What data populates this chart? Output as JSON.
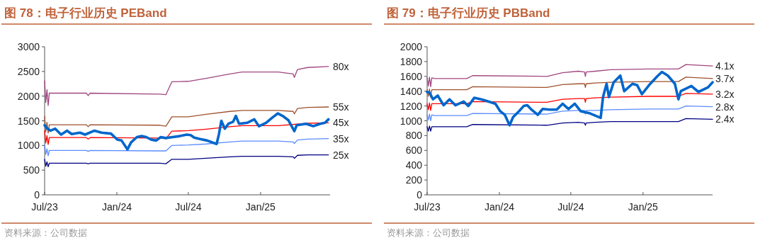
{
  "chart_data": [
    {
      "type": "line",
      "title": "图 78：电子行业历史 PEBand",
      "annotations": [
        "资料来源：公司数据"
      ],
      "xlim": [
        "2023-07-01",
        "2025-06-27"
      ],
      "xticks": [
        {
          "value": "2023-07-01",
          "label": "Jul/23"
        },
        {
          "value": "2024-01-01",
          "label": "Jan/24"
        },
        {
          "value": "2024-07-01",
          "label": "Jul/24"
        },
        {
          "value": "2025-01-01",
          "label": "Jan/25"
        }
      ],
      "ylim": [
        0,
        3000
      ],
      "yticks": [
        0,
        500,
        1000,
        1500,
        2000,
        2500,
        3000
      ],
      "series": [
        {
          "name": "80x",
          "color": "#a0467f",
          "x": [
            "2023-07-01",
            "2023-07-04",
            "2023-07-07",
            "2023-07-10",
            "2023-07-13",
            "2023-08-01",
            "2023-10-15",
            "2023-10-20",
            "2023-10-25",
            "2024-04-20",
            "2024-05-05",
            "2024-05-20",
            "2024-07-01",
            "2024-08-15",
            "2024-10-15",
            "2024-11-15",
            "2025-02-15",
            "2025-03-25",
            "2025-03-28",
            "2025-04-05",
            "2025-05-01",
            "2025-06-23"
          ],
          "values": [
            2310,
            1870,
            2130,
            1810,
            2060,
            2060,
            2060,
            2010,
            2060,
            2040,
            2030,
            2290,
            2300,
            2360,
            2450,
            2490,
            2490,
            2450,
            2380,
            2540,
            2580,
            2600
          ]
        },
        {
          "name": "55x",
          "color": "#a0522d",
          "x": [
            "2023-07-01",
            "2023-07-04",
            "2023-07-07",
            "2023-07-10",
            "2023-07-13",
            "2023-08-01",
            "2023-10-15",
            "2023-10-20",
            "2023-10-25",
            "2024-04-20",
            "2024-05-05",
            "2024-05-20",
            "2024-07-01",
            "2024-08-15",
            "2024-10-15",
            "2024-11-15",
            "2025-02-15",
            "2025-03-25",
            "2025-03-28",
            "2025-04-05",
            "2025-05-01",
            "2025-06-23"
          ],
          "values": [
            1590,
            1280,
            1470,
            1250,
            1420,
            1420,
            1420,
            1380,
            1420,
            1410,
            1390,
            1580,
            1580,
            1630,
            1690,
            1710,
            1710,
            1690,
            1640,
            1750,
            1770,
            1780
          ]
        },
        {
          "name": "45x",
          "color": "#ff0000",
          "x": [
            "2023-07-01",
            "2023-07-04",
            "2023-07-07",
            "2023-07-10",
            "2023-07-13",
            "2023-08-01",
            "2023-10-15",
            "2023-10-20",
            "2023-10-25",
            "2024-04-20",
            "2024-05-05",
            "2024-05-20",
            "2024-07-01",
            "2024-08-15",
            "2024-10-15",
            "2024-11-15",
            "2025-02-15",
            "2025-05-01",
            "2025-06-23"
          ],
          "values": [
            1300,
            1050,
            1200,
            1020,
            1160,
            1160,
            1160,
            1130,
            1160,
            1150,
            1140,
            1290,
            1300,
            1330,
            1380,
            1400,
            1400,
            1450,
            1460
          ]
        },
        {
          "name": "35x",
          "color": "#5b8cff",
          "x": [
            "2023-07-01",
            "2023-07-04",
            "2023-07-07",
            "2023-07-10",
            "2023-07-13",
            "2023-08-01",
            "2023-10-15",
            "2023-10-20",
            "2023-10-25",
            "2024-04-20",
            "2024-05-05",
            "2024-05-20",
            "2024-07-01",
            "2024-08-15",
            "2024-10-15",
            "2024-11-15",
            "2025-02-15",
            "2025-03-25",
            "2025-03-28",
            "2025-04-05",
            "2025-05-01",
            "2025-06-23"
          ],
          "values": [
            1010,
            820,
            930,
            790,
            900,
            900,
            900,
            880,
            900,
            890,
            890,
            1000,
            1010,
            1030,
            1070,
            1090,
            1090,
            1070,
            1040,
            1110,
            1130,
            1140
          ]
        },
        {
          "name": "25x",
          "color": "#000080",
          "x": [
            "2023-07-01",
            "2023-07-04",
            "2023-07-07",
            "2023-07-10",
            "2023-07-13",
            "2023-08-01",
            "2023-10-15",
            "2023-10-20",
            "2023-10-25",
            "2024-04-20",
            "2024-05-05",
            "2024-05-20",
            "2024-07-01",
            "2024-08-15",
            "2024-10-15",
            "2024-11-15",
            "2025-02-15",
            "2025-03-25",
            "2025-03-28",
            "2025-04-05",
            "2025-05-01",
            "2025-06-23"
          ],
          "values": [
            720,
            580,
            670,
            570,
            640,
            640,
            640,
            630,
            640,
            640,
            630,
            720,
            720,
            740,
            770,
            780,
            780,
            770,
            740,
            800,
            810,
            810
          ]
        },
        {
          "color": "#0066cc",
          "x": [
            "2023-07-01",
            "2023-07-07",
            "2023-07-16",
            "2023-07-28",
            "2023-08-12",
            "2023-08-27",
            "2023-09-08",
            "2023-09-29",
            "2023-10-12",
            "2023-11-05",
            "2023-11-23",
            "2023-12-17",
            "2024-01-02",
            "2024-01-13",
            "2024-01-28",
            "2024-02-06",
            "2024-02-21",
            "2024-03-04",
            "2024-03-16",
            "2024-03-28",
            "2024-04-10",
            "2024-04-22",
            "2024-05-04",
            "2024-05-22",
            "2024-06-09",
            "2024-06-27",
            "2024-07-07",
            "2024-07-16",
            "2024-07-31",
            "2024-08-18",
            "2024-09-11",
            "2024-09-17",
            "2024-09-23",
            "2024-10-02",
            "2024-10-11",
            "2024-10-23",
            "2024-10-30",
            "2024-11-07",
            "2024-11-28",
            "2024-12-16",
            "2024-12-28",
            "2025-01-15",
            "2025-01-30",
            "2025-02-14",
            "2025-02-26",
            "2025-03-13",
            "2025-03-28",
            "2025-04-03",
            "2025-04-27",
            "2025-05-15",
            "2025-06-02",
            "2025-06-14",
            "2025-06-23"
          ],
          "values": [
            1410,
            1350,
            1300,
            1340,
            1220,
            1300,
            1230,
            1260,
            1220,
            1300,
            1260,
            1240,
            1120,
            1100,
            920,
            1060,
            1170,
            1190,
            1170,
            1120,
            1100,
            1170,
            1150,
            1170,
            1190,
            1220,
            1210,
            1160,
            1130,
            1100,
            1030,
            1230,
            1500,
            1340,
            1440,
            1480,
            1600,
            1440,
            1460,
            1530,
            1390,
            1460,
            1560,
            1650,
            1600,
            1510,
            1290,
            1410,
            1440,
            1390,
            1440,
            1460,
            1530
          ]
        }
      ]
    },
    {
      "type": "line",
      "title": "图 79：电子行业历史 PBBand",
      "annotations": [
        "资料来源：公司数据"
      ],
      "xlim": [
        "2023-07-01",
        "2025-06-27"
      ],
      "xticks": [
        {
          "value": "2023-07-01",
          "label": "Jul/23"
        },
        {
          "value": "2024-01-01",
          "label": "Jan/24"
        },
        {
          "value": "2024-07-01",
          "label": "Jul/24"
        },
        {
          "value": "2025-01-01",
          "label": "Jan/25"
        }
      ],
      "ylim": [
        0,
        2000
      ],
      "yticks": [
        0,
        200,
        400,
        600,
        800,
        1000,
        1200,
        1400,
        1600,
        1800,
        2000
      ],
      "series": [
        {
          "name": "4.1x",
          "color": "#a0467f",
          "x": [
            "2023-07-01",
            "2023-07-04",
            "2023-07-07",
            "2023-07-10",
            "2023-07-13",
            "2023-07-20",
            "2023-10-10",
            "2023-10-25",
            "2024-05-01",
            "2024-06-10",
            "2024-07-20",
            "2024-08-05",
            "2024-08-07",
            "2024-08-09",
            "2024-09-01",
            "2024-10-10",
            "2025-01-15",
            "2025-04-01",
            "2025-04-20",
            "2025-06-27"
          ],
          "values": [
            1580,
            1470,
            1590,
            1460,
            1580,
            1570,
            1570,
            1610,
            1600,
            1650,
            1670,
            1660,
            1600,
            1660,
            1670,
            1690,
            1700,
            1700,
            1760,
            1740
          ]
        },
        {
          "name": "3.7x",
          "color": "#a0522d",
          "x": [
            "2023-07-01",
            "2023-07-04",
            "2023-07-07",
            "2023-07-10",
            "2023-07-13",
            "2023-07-20",
            "2023-10-10",
            "2023-10-25",
            "2024-05-01",
            "2024-06-10",
            "2024-07-20",
            "2024-08-05",
            "2024-08-07",
            "2024-08-09",
            "2024-09-01",
            "2024-10-10",
            "2025-01-15",
            "2025-04-01",
            "2025-04-20",
            "2025-06-27"
          ],
          "values": [
            1420,
            1330,
            1430,
            1320,
            1420,
            1420,
            1420,
            1460,
            1450,
            1490,
            1500,
            1500,
            1450,
            1500,
            1510,
            1520,
            1530,
            1530,
            1590,
            1570
          ]
        },
        {
          "name": "3.2x",
          "color": "#ff0000",
          "x": [
            "2023-07-01",
            "2023-07-04",
            "2023-07-07",
            "2023-07-10",
            "2023-07-13",
            "2023-07-20",
            "2023-10-10",
            "2023-10-25",
            "2024-05-01",
            "2024-06-10",
            "2024-07-20",
            "2024-08-05",
            "2024-08-07",
            "2024-08-09",
            "2024-09-01",
            "2024-10-10",
            "2025-01-15",
            "2025-04-01",
            "2025-04-20",
            "2025-06-27"
          ],
          "values": [
            1230,
            1150,
            1240,
            1140,
            1230,
            1230,
            1230,
            1260,
            1250,
            1290,
            1300,
            1300,
            1250,
            1300,
            1310,
            1320,
            1330,
            1330,
            1370,
            1360
          ]
        },
        {
          "name": "2.8x",
          "color": "#5b8cff",
          "x": [
            "2023-07-01",
            "2023-07-04",
            "2023-07-07",
            "2023-07-10",
            "2023-07-13",
            "2023-07-20",
            "2023-10-10",
            "2023-10-25",
            "2024-05-01",
            "2024-06-10",
            "2024-07-20",
            "2024-08-05",
            "2024-08-07",
            "2024-08-09",
            "2024-09-01",
            "2024-10-10",
            "2025-01-15",
            "2025-04-01",
            "2025-04-20",
            "2025-06-27"
          ],
          "values": [
            1080,
            1010,
            1090,
            1000,
            1080,
            1070,
            1070,
            1100,
            1090,
            1130,
            1140,
            1140,
            1090,
            1140,
            1140,
            1150,
            1160,
            1160,
            1200,
            1190
          ]
        },
        {
          "name": "2.4x",
          "color": "#000080",
          "x": [
            "2023-07-01",
            "2023-07-04",
            "2023-07-07",
            "2023-07-10",
            "2023-07-13",
            "2023-07-20",
            "2023-10-10",
            "2023-10-25",
            "2024-05-01",
            "2024-06-10",
            "2024-07-20",
            "2024-08-05",
            "2024-08-07",
            "2024-08-09",
            "2024-09-01",
            "2024-10-10",
            "2025-01-15",
            "2025-04-01",
            "2025-04-20",
            "2025-06-27"
          ],
          "values": [
            920,
            860,
            930,
            860,
            920,
            920,
            920,
            950,
            940,
            970,
            980,
            970,
            940,
            970,
            980,
            990,
            990,
            990,
            1030,
            1020
          ]
        },
        {
          "color": "#0066cc",
          "x": [
            "2023-07-01",
            "2023-07-07",
            "2023-07-16",
            "2023-07-28",
            "2023-08-12",
            "2023-08-27",
            "2023-09-11",
            "2023-10-02",
            "2023-10-14",
            "2023-10-29",
            "2023-11-16",
            "2023-12-04",
            "2023-12-22",
            "2024-01-03",
            "2024-01-15",
            "2024-01-27",
            "2024-02-05",
            "2024-02-20",
            "2024-03-03",
            "2024-03-12",
            "2024-03-21",
            "2024-04-08",
            "2024-04-20",
            "2024-05-08",
            "2024-05-26",
            "2024-06-10",
            "2024-06-25",
            "2024-07-11",
            "2024-07-26",
            "2024-08-19",
            "2024-09-15",
            "2024-09-21",
            "2024-09-30",
            "2024-10-06",
            "2024-10-18",
            "2024-11-04",
            "2024-11-14",
            "2024-12-05",
            "2024-12-17",
            "2024-12-29",
            "2025-01-16",
            "2025-02-06",
            "2025-02-18",
            "2025-03-05",
            "2025-03-23",
            "2025-04-01",
            "2025-04-07",
            "2025-05-04",
            "2025-05-22",
            "2025-06-15",
            "2025-06-27"
          ],
          "values": [
            1390,
            1380,
            1290,
            1340,
            1210,
            1290,
            1210,
            1260,
            1200,
            1310,
            1290,
            1260,
            1230,
            1130,
            1080,
            940,
            1050,
            1130,
            1200,
            1210,
            1160,
            1080,
            1160,
            1150,
            1150,
            1230,
            1160,
            1230,
            1130,
            1100,
            1040,
            1320,
            1500,
            1320,
            1520,
            1610,
            1400,
            1500,
            1480,
            1360,
            1480,
            1600,
            1660,
            1610,
            1500,
            1290,
            1400,
            1470,
            1390,
            1450,
            1520
          ]
        }
      ]
    }
  ]
}
